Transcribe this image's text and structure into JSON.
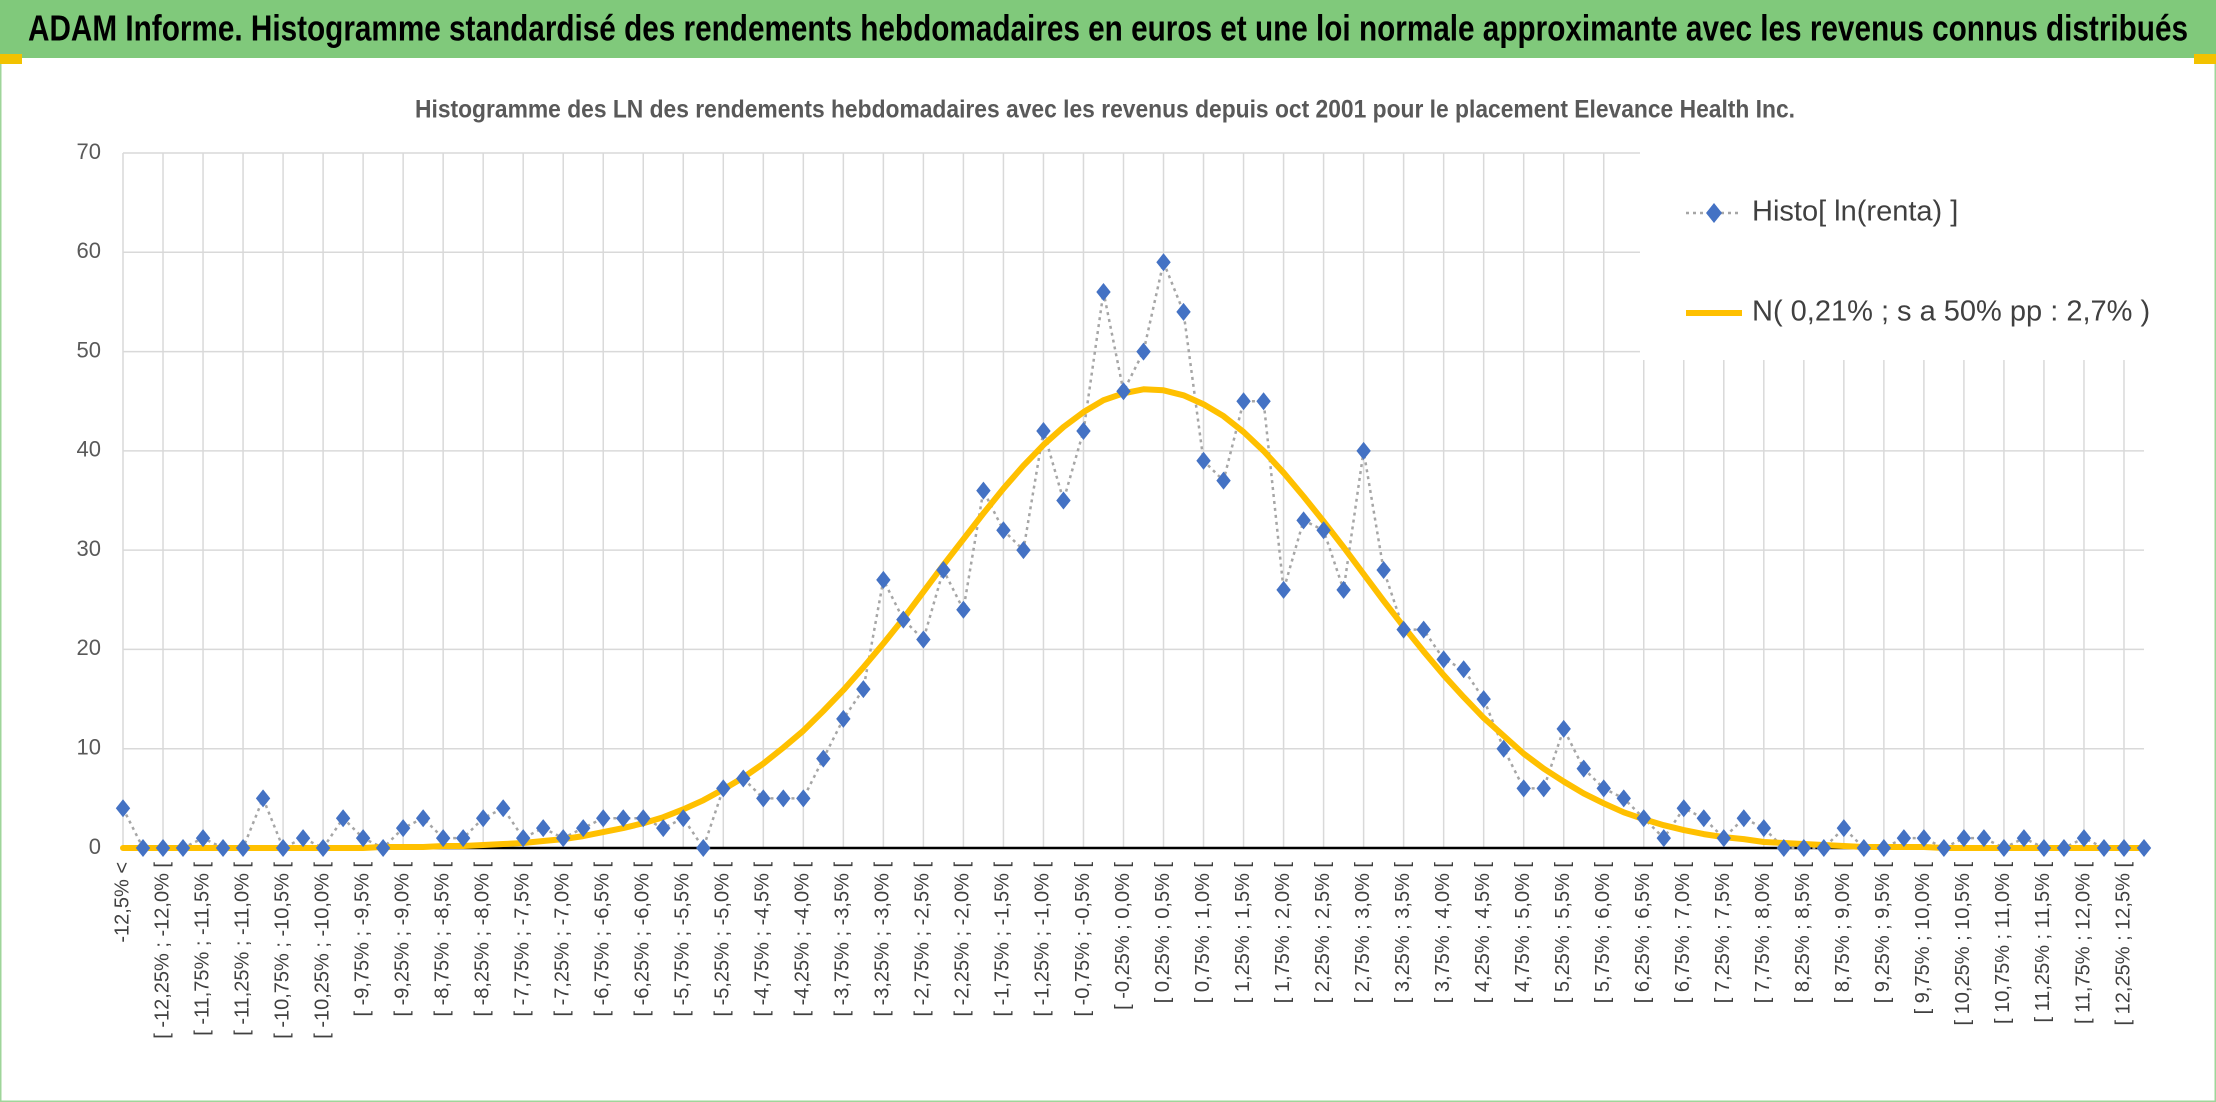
{
  "chart_data": {
    "type": "line",
    "title": "ADAM Informe. Histogramme standardisé des rendements hebdomadaires en euros et une loi normale approximante avec les revenus connus distribués",
    "subtitle": "Histogramme des LN des rendements hebdomadaires avec les revenus depuis oct 2001 pour le placement Elevance Health Inc.",
    "categories": [
      "-12,5% <",
      null,
      "[ -12,25% ; -12,0% [",
      null,
      "[ -11,75% ; -11,5% [",
      null,
      "[ -11,25% ; -11,0% [",
      null,
      "[ -10,75% ; -10,5% [",
      null,
      "[ -10,25% ; -10,0% [",
      null,
      "[ -9,75% ; -9,5% [",
      null,
      "[ -9,25% ; -9,0% [",
      null,
      "[ -8,75% ; -8,5% [",
      null,
      "[ -8,25% ; -8,0% [",
      null,
      "[ -7,75% ; -7,5% [",
      null,
      "[ -7,25% ; -7,0% [",
      null,
      "[ -6,75% ; -6,5% [",
      null,
      "[ -6,25% ; -6,0% [",
      null,
      "[ -5,75% ; -5,5% [",
      null,
      "[ -5,25% ; -5,0% [",
      null,
      "[ -4,75% ; -4,5% [",
      null,
      "[ -4,25% ; -4,0% [",
      null,
      "[ -3,75% ; -3,5% [",
      null,
      "[ -3,25% ; -3,0% [",
      null,
      "[ -2,75% ; -2,5% [",
      null,
      "[ -2,25% ; -2,0% [",
      null,
      "[ -1,75% ; -1,5% [",
      null,
      "[ -1,25% ; -1,0% [",
      null,
      "[ -0,75% ; -0,5% [",
      null,
      "[ -0,25% ; 0,0% [",
      null,
      "[ 0,25% ; 0,5% [",
      null,
      "[ 0,75% ; 1,0% [",
      null,
      "[ 1,25% ; 1,5% [",
      null,
      "[ 1,75% ; 2,0% [",
      null,
      "[ 2,25% ; 2,5% [",
      null,
      "[ 2,75% ; 3,0% [",
      null,
      "[ 3,25% ; 3,5% [",
      null,
      "[ 3,75% ; 4,0% [",
      null,
      "[ 4,25% ; 4,5% [",
      null,
      "[ 4,75% ; 5,0% [",
      null,
      "[ 5,25% ; 5,5% [",
      null,
      "[ 5,75% ; 6,0% [",
      null,
      "[ 6,25% ; 6,5% [",
      null,
      "[ 6,75% ; 7,0% [",
      null,
      "[ 7,25% ; 7,5% [",
      null,
      "[ 7,75% ; 8,0% [",
      null,
      "[ 8,25% ; 8,5% [",
      null,
      "[ 8,75% ; 9,0% [",
      null,
      "[ 9,25% ; 9,5% [",
      null,
      "[ 9,75% ; 10,0% [",
      null,
      "[ 10,25% ; 10,5% [",
      null,
      "[ 10,75% ; 11,0% [",
      null,
      "[ 11,25% ; 11,5% [",
      null,
      "[ 11,75% ; 12,0% [",
      null,
      "[ 12,25% ; 12,5% [",
      null
    ],
    "series": [
      {
        "name": "Histo[ ln(renta) ]",
        "color": "#4472c4",
        "line_color": "#a6a6a6",
        "values": [
          4,
          0,
          0,
          0,
          1,
          0,
          0,
          5,
          0,
          1,
          0,
          3,
          1,
          0,
          2,
          3,
          1,
          1,
          3,
          4,
          1,
          2,
          1,
          2,
          3,
          3,
          3,
          2,
          3,
          0,
          6,
          7,
          5,
          5,
          5,
          9,
          13,
          16,
          27,
          23,
          21,
          28,
          24,
          36,
          32,
          30,
          42,
          35,
          42,
          56,
          46,
          50,
          59,
          54,
          39,
          37,
          45,
          45,
          26,
          33,
          32,
          26,
          40,
          28,
          22,
          22,
          19,
          18,
          15,
          10,
          6,
          6,
          12,
          8,
          6,
          5,
          3,
          1,
          4,
          3,
          1,
          3,
          2,
          0,
          0,
          0,
          2,
          0,
          0,
          1,
          1,
          0,
          1,
          1,
          0,
          1,
          0,
          0,
          1,
          0,
          0,
          0
        ]
      },
      {
        "name": "N( 0,21% ; s a 50% pp : 2,7% )",
        "color": "#ffc000",
        "values": [
          0,
          0,
          0,
          0,
          0,
          0,
          0,
          0,
          0,
          0,
          0,
          0,
          0,
          0.1,
          0.1,
          0.1,
          0.2,
          0.2,
          0.3,
          0.4,
          0.5,
          0.7,
          0.9,
          1.2,
          1.6,
          2.0,
          2.5,
          3.1,
          3.9,
          4.8,
          5.9,
          7.1,
          8.5,
          10.1,
          11.8,
          13.8,
          15.9,
          18.2,
          20.6,
          23.1,
          25.8,
          28.5,
          31.1,
          33.7,
          36.2,
          38.5,
          40.6,
          42.4,
          43.9,
          45.1,
          45.8,
          46.2,
          46.1,
          45.6,
          44.7,
          43.5,
          41.9,
          40.0,
          37.8,
          35.4,
          32.9,
          30.3,
          27.6,
          24.9,
          22.3,
          19.8,
          17.4,
          15.2,
          13.1,
          11.3,
          9.5,
          8.0,
          6.7,
          5.5,
          4.5,
          3.6,
          2.9,
          2.3,
          1.8,
          1.4,
          1.1,
          0.9,
          0.6,
          0.5,
          0.4,
          0.3,
          0.2,
          0.1,
          0.1,
          0.1,
          0.1,
          0,
          0,
          0,
          0,
          0,
          0,
          0,
          0,
          0,
          0,
          0
        ]
      }
    ],
    "ylim": [
      0,
      70
    ],
    "yticks": [
      0,
      10,
      20,
      30,
      40,
      50,
      60,
      70
    ],
    "grid": true,
    "legend": "upper right"
  }
}
